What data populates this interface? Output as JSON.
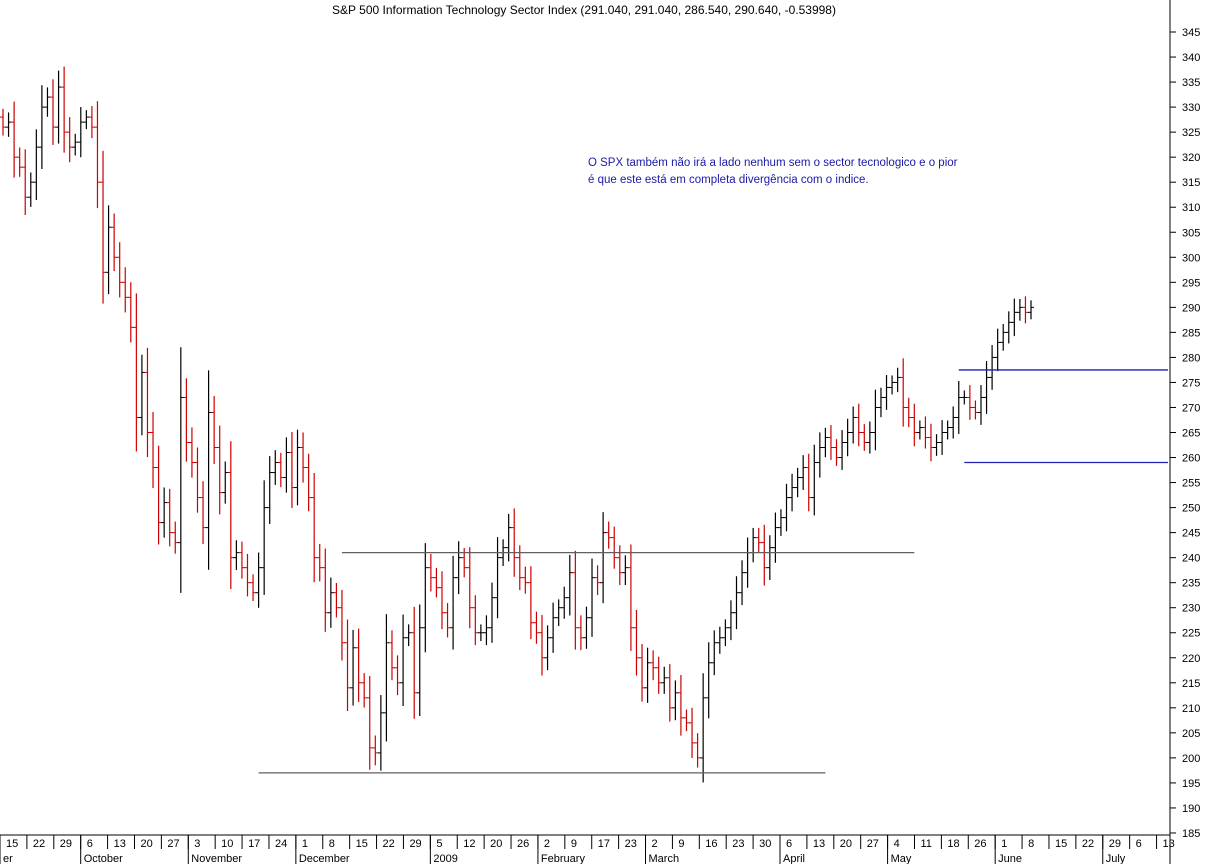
{
  "chart_data": {
    "type": "ohlc",
    "title": "S&P 500 Information Technology Sector Index (291.040, 291.040, 286.540, 290.640, -0.53998)",
    "annotation": [
      "O SPX também não irá a lado nenhum sem o sector tecnologico e o pior",
      "é que este está em completa divergência com o indice."
    ],
    "ylim": [
      182,
      347
    ],
    "y_ticks": [
      185,
      190,
      195,
      200,
      205,
      210,
      215,
      220,
      225,
      230,
      235,
      240,
      245,
      250,
      255,
      260,
      265,
      270,
      275,
      280,
      285,
      290,
      295,
      300,
      305,
      310,
      315,
      320,
      325,
      330,
      335,
      340,
      345
    ],
    "y_ticks_labels": [
      "185",
      "190",
      "195",
      "200",
      "205",
      "210",
      "215",
      "220",
      "225",
      "230",
      "235",
      "240",
      "245",
      "250",
      "255",
      "260",
      "265",
      "270",
      "275",
      "280",
      "285",
      "290",
      "295",
      "300",
      "305",
      "310",
      "315",
      "320",
      "325",
      "330",
      "335",
      "340",
      "345"
    ],
    "week_ticks": [
      "15",
      "22",
      "29",
      "6",
      "13",
      "20",
      "27",
      "3",
      "10",
      "17",
      "24",
      "1",
      "8",
      "15",
      "22",
      "29",
      "5",
      "12",
      "20",
      "26",
      "2",
      "9",
      "17",
      "23",
      "2",
      "9",
      "16",
      "23",
      "30",
      "6",
      "13",
      "20",
      "27",
      "4",
      "11",
      "18",
      "26",
      "1",
      "8",
      "15",
      "22",
      "29",
      "6",
      "13"
    ],
    "month_labels": [
      {
        "label": "er",
        "week": 0
      },
      {
        "label": "October",
        "week": 3
      },
      {
        "label": "November",
        "week": 7
      },
      {
        "label": "December",
        "week": 11
      },
      {
        "label": "2009",
        "week": 16
      },
      {
        "label": "February",
        "week": 20
      },
      {
        "label": "March",
        "week": 24
      },
      {
        "label": "April",
        "week": 29
      },
      {
        "label": "May",
        "week": 33
      },
      {
        "label": "June",
        "week": 37
      },
      {
        "label": "July",
        "week": 41
      }
    ],
    "bar_colors": {
      "up": "#000000",
      "down": "#cc0000"
    },
    "closes": [
      326,
      327,
      320,
      318,
      312,
      315,
      322,
      330,
      332,
      326,
      334,
      325,
      322,
      323,
      327,
      328,
      326,
      315,
      297,
      306,
      300,
      295,
      292,
      286,
      268,
      277,
      265,
      258,
      247,
      251,
      245,
      243,
      272,
      263,
      259,
      252,
      246,
      269,
      262,
      253,
      257,
      240,
      241,
      238,
      235,
      233,
      238,
      250,
      257,
      259,
      256,
      261,
      254,
      262,
      258,
      252,
      240,
      238,
      229,
      233,
      230,
      223,
      214,
      222,
      215,
      212,
      202,
      201,
      209,
      223,
      218,
      215,
      224,
      225,
      213,
      226,
      238,
      236,
      234,
      229,
      226,
      236,
      240,
      238,
      230,
      225,
      225,
      226,
      232,
      240,
      242,
      246,
      240,
      236,
      235,
      227,
      225,
      220,
      224,
      228,
      230,
      232,
      237,
      226,
      224,
      228,
      236,
      235,
      245,
      244,
      240,
      237,
      238,
      226,
      220,
      214,
      219,
      218,
      215,
      216,
      210,
      213,
      208,
      207,
      203,
      200,
      212,
      219,
      223,
      224,
      226,
      229,
      233,
      237,
      241,
      244,
      243,
      238,
      242,
      246,
      248,
      252,
      254,
      256,
      258,
      252,
      259,
      262,
      264,
      262,
      260,
      263,
      265,
      268,
      265,
      263,
      265,
      270,
      272,
      274,
      275,
      276,
      270,
      268,
      265,
      266,
      264,
      262,
      263,
      265,
      266,
      268,
      272,
      272,
      270,
      269,
      272,
      276,
      280,
      283,
      285,
      287,
      289,
      290,
      289,
      290
    ],
    "support_resistance_lines": [
      {
        "y": 241,
        "from_bar": 61,
        "to_bar": 164,
        "color": "#606060"
      },
      {
        "y": 197,
        "from_bar": 46,
        "to_bar": 148,
        "color": "#606060"
      },
      {
        "y": 277.5,
        "from_bar": 172,
        "to_bar": 215,
        "color": "#1f1fb0"
      },
      {
        "y": 259,
        "from_bar": 173,
        "to_bar": 215,
        "color": "#1f1fb0"
      }
    ],
    "grid": false
  }
}
